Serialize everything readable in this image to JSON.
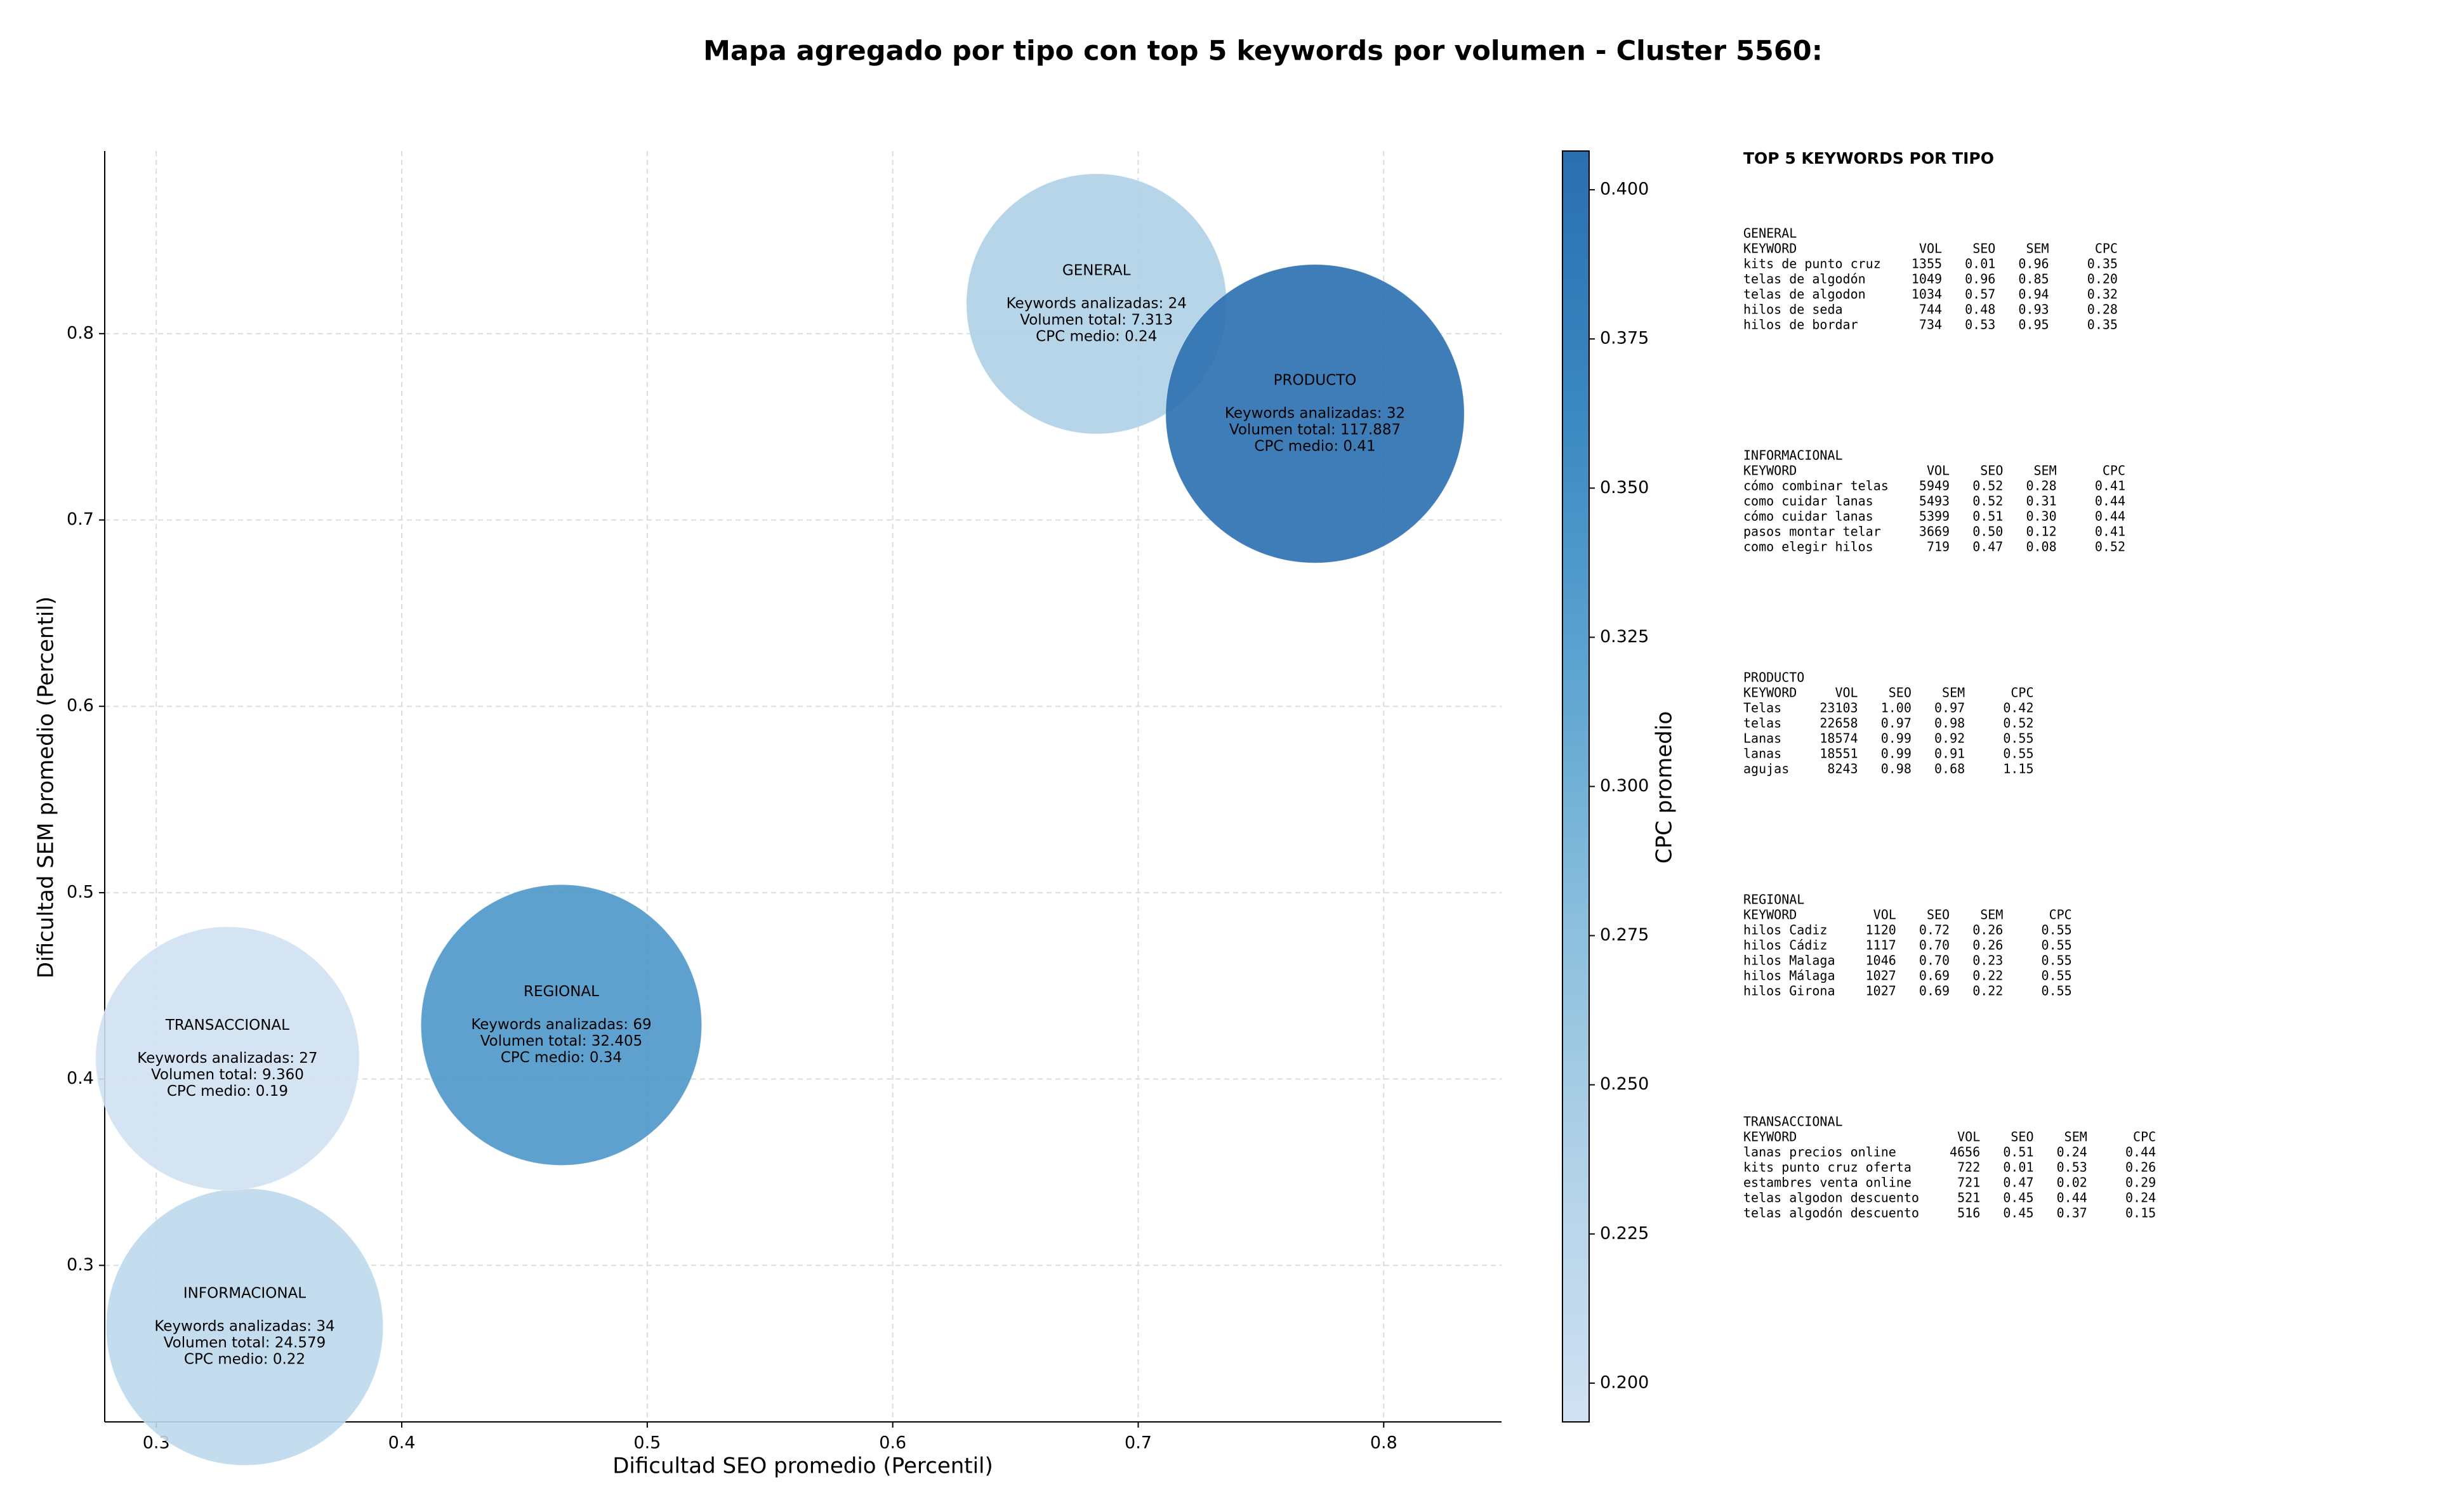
{
  "chart_data": {
    "type": "scatter",
    "title": "Mapa agregado por tipo con top 5 keywords por volumen - Cluster 5560:",
    "xlabel": "Dificultad SEO promedio (Percentil)",
    "ylabel": "Dificultad SEM promedio (Percentil)",
    "categories": [
      "GENERAL",
      "INFORMACIONAL",
      "PRODUCTO",
      "REGIONAL",
      "TRANSACCIONAL"
    ],
    "x": [
      0.683,
      0.336,
      0.772,
      0.465,
      0.329
    ],
    "values": [
      0.816,
      0.267,
      0.757,
      0.429,
      0.411
    ],
    "color_values": [
      0.24,
      0.22,
      0.41,
      0.34,
      0.19
    ],
    "sizes": [
      7313,
      24579,
      117887,
      32405,
      9360
    ],
    "annotations": [
      [
        "Keywords analizadas: 24",
        "Volumen total: 7.313",
        "CPC medio: 0.24"
      ],
      [
        "Keywords analizadas: 34",
        "Volumen total: 24.579",
        "CPC medio: 0.22"
      ],
      [
        "Keywords analizadas: 32",
        "Volumen total: 117.887",
        "CPC medio: 0.41"
      ],
      [
        "Keywords analizadas: 69",
        "Volumen total: 32.405",
        "CPC medio: 0.34"
      ],
      [
        "Keywords analizadas: 27",
        "Volumen total: 9.360",
        "CPC medio: 0.19"
      ]
    ],
    "xlim": [
      0.279,
      0.848
    ],
    "ylim": [
      0.216,
      0.898
    ],
    "xticks": [
      0.3,
      0.4,
      0.5,
      0.6,
      0.7,
      0.8
    ],
    "yticks": [
      0.3,
      0.4,
      0.5,
      0.6,
      0.7,
      0.8
    ],
    "grid": true,
    "colorbar": {
      "label": "CPC promedio",
      "lim": [
        0.1935,
        0.4065
      ],
      "colormap": [
        "#d0e1f2",
        "#b2d2e8",
        "#89bedc",
        "#5ba3d0",
        "#3a87c1",
        "#2a6fb0"
      ],
      "ticks": [
        {
          "value": 0.2,
          "label": "0.200"
        },
        {
          "value": 0.225,
          "label": "0.225"
        },
        {
          "value": 0.25,
          "label": "0.250"
        },
        {
          "value": 0.275,
          "label": "0.275"
        },
        {
          "value": 0.3,
          "label": "0.300"
        },
        {
          "value": 0.325,
          "label": "0.325"
        },
        {
          "value": 0.35,
          "label": "0.350"
        },
        {
          "value": 0.375,
          "label": "0.375"
        },
        {
          "value": 0.4,
          "label": "0.400"
        }
      ]
    }
  },
  "keywords_panel": {
    "title": "TOP 5 KEYWORDS POR TIPO",
    "header": [
      "KEYWORD",
      "VOL",
      "SEO",
      "SEM",
      "CPC"
    ],
    "blocks": [
      {
        "name": "GENERAL",
        "rows": [
          [
            "kits de punto cruz",
            "1355",
            "0.01",
            "0.96",
            "0.35"
          ],
          [
            "telas de algodón",
            "1049",
            "0.96",
            "0.85",
            "0.20"
          ],
          [
            "telas de algodon",
            "1034",
            "0.57",
            "0.94",
            "0.32"
          ],
          [
            "hilos de seda",
            "744",
            "0.48",
            "0.93",
            "0.28"
          ],
          [
            "hilos de bordar",
            "734",
            "0.53",
            "0.95",
            "0.35"
          ]
        ]
      },
      {
        "name": "INFORMACIONAL",
        "rows": [
          [
            "cómo combinar telas",
            "5949",
            "0.52",
            "0.28",
            "0.41"
          ],
          [
            "como cuidar lanas",
            "5493",
            "0.52",
            "0.31",
            "0.44"
          ],
          [
            "cómo cuidar lanas",
            "5399",
            "0.51",
            "0.30",
            "0.44"
          ],
          [
            "pasos montar telar",
            "3669",
            "0.50",
            "0.12",
            "0.41"
          ],
          [
            "como elegir hilos",
            "719",
            "0.47",
            "0.08",
            "0.52"
          ]
        ]
      },
      {
        "name": "PRODUCTO",
        "rows": [
          [
            "Telas",
            "23103",
            "1.00",
            "0.97",
            "0.42"
          ],
          [
            "telas",
            "22658",
            "0.97",
            "0.98",
            "0.52"
          ],
          [
            "Lanas",
            "18574",
            "0.99",
            "0.92",
            "0.55"
          ],
          [
            "lanas",
            "18551",
            "0.99",
            "0.91",
            "0.55"
          ],
          [
            "agujas",
            "8243",
            "0.98",
            "0.68",
            "1.15"
          ]
        ]
      },
      {
        "name": "REGIONAL",
        "rows": [
          [
            "hilos Cadiz",
            "1120",
            "0.72",
            "0.26",
            "0.55"
          ],
          [
            "hilos Cádiz",
            "1117",
            "0.70",
            "0.26",
            "0.55"
          ],
          [
            "hilos Malaga",
            "1046",
            "0.70",
            "0.23",
            "0.55"
          ],
          [
            "hilos Málaga",
            "1027",
            "0.69",
            "0.22",
            "0.55"
          ],
          [
            "hilos Girona",
            "1027",
            "0.69",
            "0.22",
            "0.55"
          ]
        ]
      },
      {
        "name": "TRANSACCIONAL",
        "rows": [
          [
            "lanas precios online",
            "4656",
            "0.51",
            "0.24",
            "0.44"
          ],
          [
            "kits punto cruz oferta",
            "722",
            "0.01",
            "0.53",
            "0.26"
          ],
          [
            "estambres venta online",
            "721",
            "0.47",
            "0.02",
            "0.29"
          ],
          [
            "telas algodon descuento",
            "521",
            "0.45",
            "0.44",
            "0.24"
          ],
          [
            "telas algodón descuento",
            "516",
            "0.45",
            "0.37",
            "0.15"
          ]
        ]
      }
    ]
  }
}
